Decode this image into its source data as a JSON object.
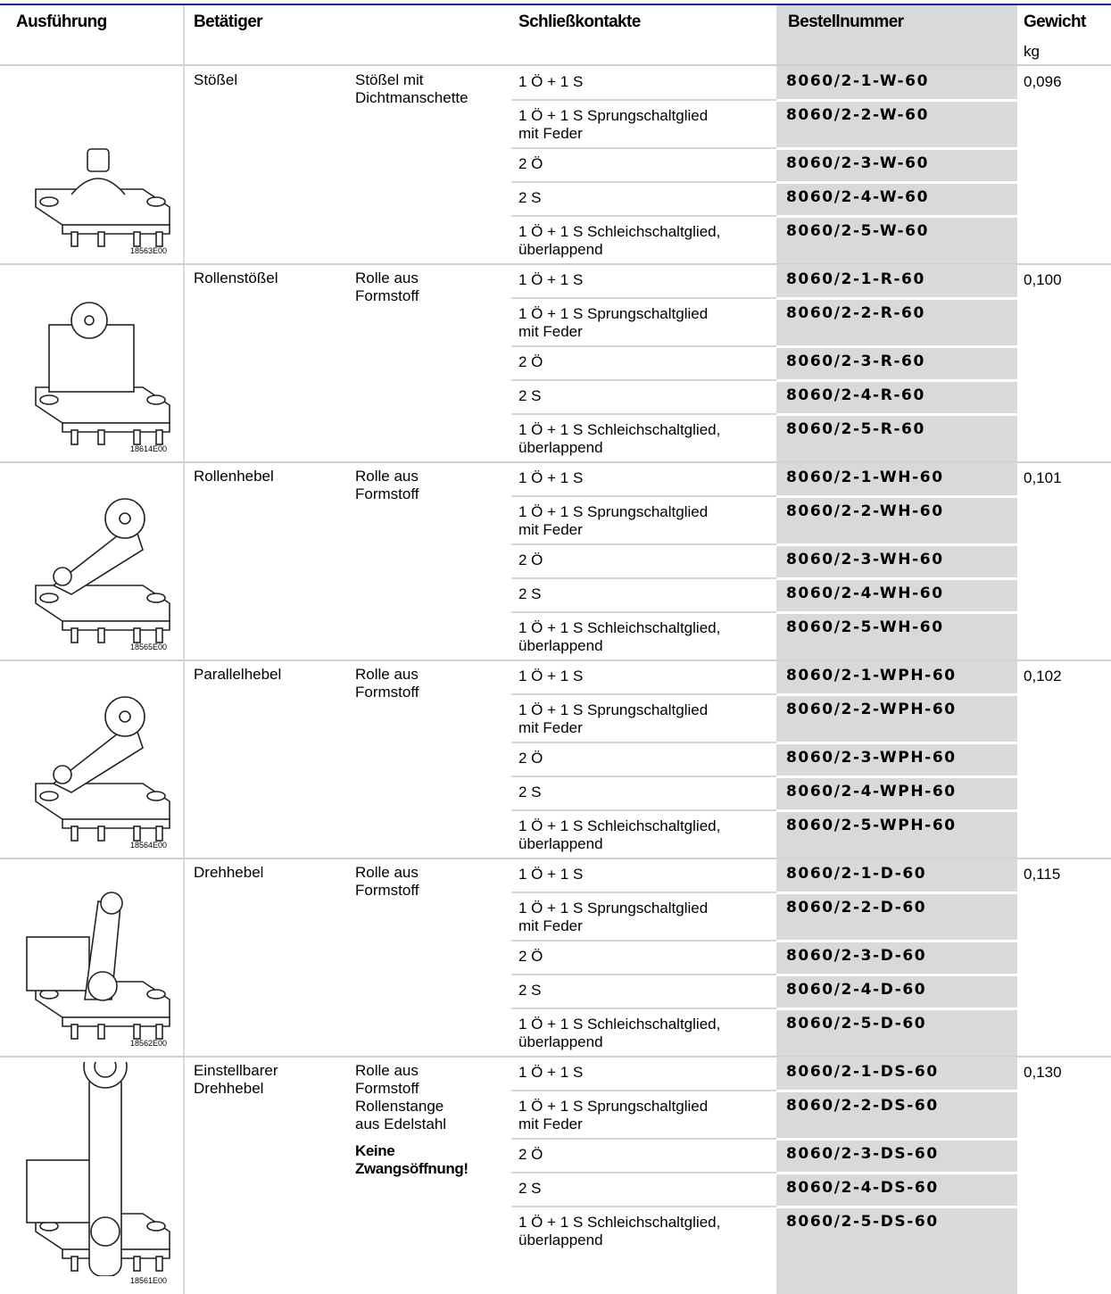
{
  "header": {
    "columns": [
      "Ausführung",
      "Betätiger",
      "Schließkontakte",
      "Bestellnummer",
      "Gewicht"
    ],
    "unit": "kg"
  },
  "groups": [
    {
      "image_code": "18563E00",
      "actuator": [
        "Stößel"
      ],
      "description": [
        "Stößel mit",
        "Dichtmanschette"
      ],
      "weight": "0,096",
      "variants": [
        {
          "contacts": [
            "1 Ö + 1 S"
          ],
          "order_number": "8060/2-1-W-60"
        },
        {
          "contacts": [
            "1 Ö + 1 S Sprungschaltglied",
            "mit Feder"
          ],
          "order_number": "8060/2-2-W-60"
        },
        {
          "contacts": [
            "2 Ö"
          ],
          "order_number": "8060/2-3-W-60"
        },
        {
          "contacts": [
            "2 S"
          ],
          "order_number": "8060/2-4-W-60"
        },
        {
          "contacts": [
            "1 Ö + 1 S Schleichschaltglied,",
            "überlappend"
          ],
          "order_number": "8060/2-5-W-60"
        }
      ]
    },
    {
      "image_code": "18614E00",
      "actuator": [
        "Rollenstößel"
      ],
      "description": [
        "Rolle aus",
        "Formstoff"
      ],
      "weight": "0,100",
      "variants": [
        {
          "contacts": [
            "1 Ö + 1 S"
          ],
          "order_number": "8060/2-1-R-60"
        },
        {
          "contacts": [
            "1 Ö + 1 S Sprungschaltglied",
            "mit Feder"
          ],
          "order_number": "8060/2-2-R-60"
        },
        {
          "contacts": [
            "2 Ö"
          ],
          "order_number": "8060/2-3-R-60"
        },
        {
          "contacts": [
            "2 S"
          ],
          "order_number": "8060/2-4-R-60"
        },
        {
          "contacts": [
            "1 Ö + 1 S Schleichschaltglied,",
            "überlappend"
          ],
          "order_number": "8060/2-5-R-60"
        }
      ]
    },
    {
      "image_code": "18565E00",
      "actuator": [
        "Rollenhebel"
      ],
      "description": [
        "Rolle aus",
        "Formstoff"
      ],
      "weight": "0,101",
      "variants": [
        {
          "contacts": [
            "1 Ö + 1 S"
          ],
          "order_number": "8060/2-1-WH-60"
        },
        {
          "contacts": [
            "1 Ö + 1 S Sprungschaltglied",
            "mit Feder"
          ],
          "order_number": "8060/2-2-WH-60"
        },
        {
          "contacts": [
            "2 Ö"
          ],
          "order_number": "8060/2-3-WH-60"
        },
        {
          "contacts": [
            "2 S"
          ],
          "order_number": "8060/2-4-WH-60"
        },
        {
          "contacts": [
            "1 Ö + 1 S Schleichschaltglied,",
            "überlappend"
          ],
          "order_number": "8060/2-5-WH-60"
        }
      ]
    },
    {
      "image_code": "18564E00",
      "actuator": [
        "Parallelhebel"
      ],
      "description": [
        "Rolle aus",
        "Formstoff"
      ],
      "weight": "0,102",
      "variants": [
        {
          "contacts": [
            "1 Ö + 1 S"
          ],
          "order_number": "8060/2-1-WPH-60"
        },
        {
          "contacts": [
            "1 Ö + 1 S Sprungschaltglied",
            "mit Feder"
          ],
          "order_number": "8060/2-2-WPH-60"
        },
        {
          "contacts": [
            "2 Ö"
          ],
          "order_number": "8060/2-3-WPH-60"
        },
        {
          "contacts": [
            "2 S"
          ],
          "order_number": "8060/2-4-WPH-60"
        },
        {
          "contacts": [
            "1 Ö + 1 S Schleichschaltglied,",
            "überlappend"
          ],
          "order_number": "8060/2-5-WPH-60"
        }
      ]
    },
    {
      "image_code": "18562E00",
      "actuator": [
        "Drehhebel"
      ],
      "description": [
        "Rolle aus",
        "Formstoff"
      ],
      "weight": "0,115",
      "variants": [
        {
          "contacts": [
            "1 Ö + 1 S"
          ],
          "order_number": "8060/2-1-D-60"
        },
        {
          "contacts": [
            "1 Ö + 1 S Sprungschaltglied",
            "mit Feder"
          ],
          "order_number": "8060/2-2-D-60"
        },
        {
          "contacts": [
            "2 Ö"
          ],
          "order_number": "8060/2-3-D-60"
        },
        {
          "contacts": [
            "2 S"
          ],
          "order_number": "8060/2-4-D-60"
        },
        {
          "contacts": [
            "1 Ö + 1 S Schleichschaltglied,",
            "überlappend"
          ],
          "order_number": "8060/2-5-D-60"
        }
      ]
    },
    {
      "image_code": "18561E00",
      "actuator": [
        "Einstellbarer",
        "Drehhebel"
      ],
      "description": [
        "Rolle aus",
        "Formstoff",
        "Rollenstange",
        "aus Edelstahl"
      ],
      "note": [
        "Keine",
        "Zwangsöffnung!"
      ],
      "weight": "0,130",
      "variants": [
        {
          "contacts": [
            "1 Ö + 1 S"
          ],
          "order_number": "8060/2-1-DS-60"
        },
        {
          "contacts": [
            "1 Ö + 1 S Sprungschaltglied",
            "mit Feder"
          ],
          "order_number": "8060/2-2-DS-60"
        },
        {
          "contacts": [
            "2 Ö"
          ],
          "order_number": "8060/2-3-DS-60"
        },
        {
          "contacts": [
            "2 S"
          ],
          "order_number": "8060/2-4-DS-60"
        },
        {
          "contacts": [
            "1 Ö + 1 S Schleichschaltglied,",
            "überlappend"
          ],
          "order_number": "8060/2-5-DS-60"
        }
      ]
    }
  ]
}
